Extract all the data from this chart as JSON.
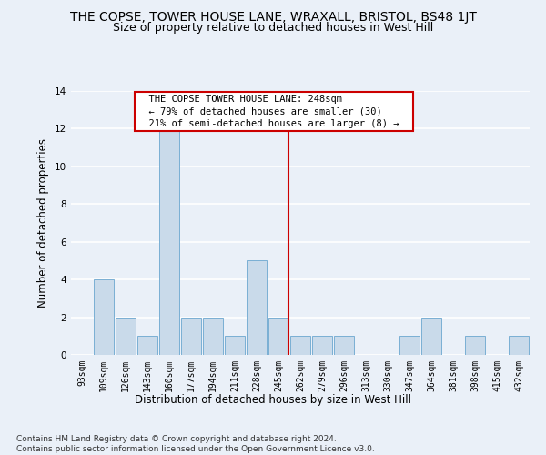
{
  "title": "THE COPSE, TOWER HOUSE LANE, WRAXALL, BRISTOL, BS48 1JT",
  "subtitle": "Size of property relative to detached houses in West Hill",
  "xlabel": "Distribution of detached houses by size in West Hill",
  "ylabel": "Number of detached properties",
  "bar_labels": [
    "93sqm",
    "109sqm",
    "126sqm",
    "143sqm",
    "160sqm",
    "177sqm",
    "194sqm",
    "211sqm",
    "228sqm",
    "245sqm",
    "262sqm",
    "279sqm",
    "296sqm",
    "313sqm",
    "330sqm",
    "347sqm",
    "364sqm",
    "381sqm",
    "398sqm",
    "415sqm",
    "432sqm"
  ],
  "bar_heights": [
    0,
    4,
    2,
    1,
    12,
    2,
    2,
    1,
    5,
    2,
    1,
    1,
    1,
    0,
    0,
    1,
    2,
    0,
    1,
    0,
    1
  ],
  "bar_color": "#c9daea",
  "bar_edge_color": "#7aafd4",
  "vline_x_index": 9,
  "vline_color": "#cc0000",
  "annotation_text": "  THE COPSE TOWER HOUSE LANE: 248sqm  \n  ← 79% of detached houses are smaller (30)  \n  21% of semi-detached houses are larger (8) →  ",
  "annotation_box_color": "#cc0000",
  "ylim": [
    0,
    14
  ],
  "yticks": [
    0,
    2,
    4,
    6,
    8,
    10,
    12,
    14
  ],
  "footer_text": "Contains HM Land Registry data © Crown copyright and database right 2024.\nContains public sector information licensed under the Open Government Licence v3.0.",
  "background_color": "#eaf0f8",
  "plot_bg_color": "#eaf0f8",
  "grid_color": "#ffffff",
  "title_fontsize": 10,
  "subtitle_fontsize": 9,
  "axis_label_fontsize": 8.5,
  "tick_fontsize": 7,
  "footer_fontsize": 6.5,
  "annotation_fontsize": 7.5
}
